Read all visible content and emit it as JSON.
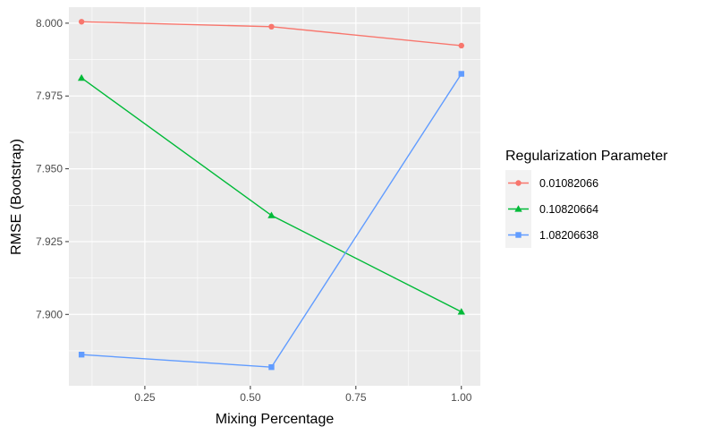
{
  "chart_data": {
    "type": "line",
    "xlabel": "Mixing Percentage",
    "ylabel": "RMSE (Bootstrap)",
    "xlim": [
      0.07,
      1.045
    ],
    "ylim": [
      7.8755,
      8.0055
    ],
    "x_ticks": [
      0.25,
      0.5,
      0.75,
      1.0
    ],
    "x_tick_labels": [
      "0.25",
      "0.50",
      "0.75",
      "1.00"
    ],
    "y_ticks": [
      7.9,
      7.925,
      7.95,
      7.975,
      8.0
    ],
    "y_tick_labels": [
      "7.900",
      "7.925",
      "7.950",
      "7.975",
      "8.000"
    ],
    "grid": true,
    "legend": {
      "title": "Regularization Parameter",
      "position": "right"
    },
    "x": [
      0.1,
      0.55,
      1.0
    ],
    "series": [
      {
        "name": "0.01082066",
        "values": [
          8.0005,
          7.9988,
          7.9923
        ],
        "color": "#F8766D",
        "marker": "circle"
      },
      {
        "name": "0.10820664",
        "values": [
          7.9812,
          7.934,
          7.9009
        ],
        "color": "#00BA38",
        "marker": "triangle"
      },
      {
        "name": "1.08206638",
        "values": [
          7.8862,
          7.8819,
          7.9826
        ],
        "color": "#619CFF",
        "marker": "square"
      }
    ]
  }
}
